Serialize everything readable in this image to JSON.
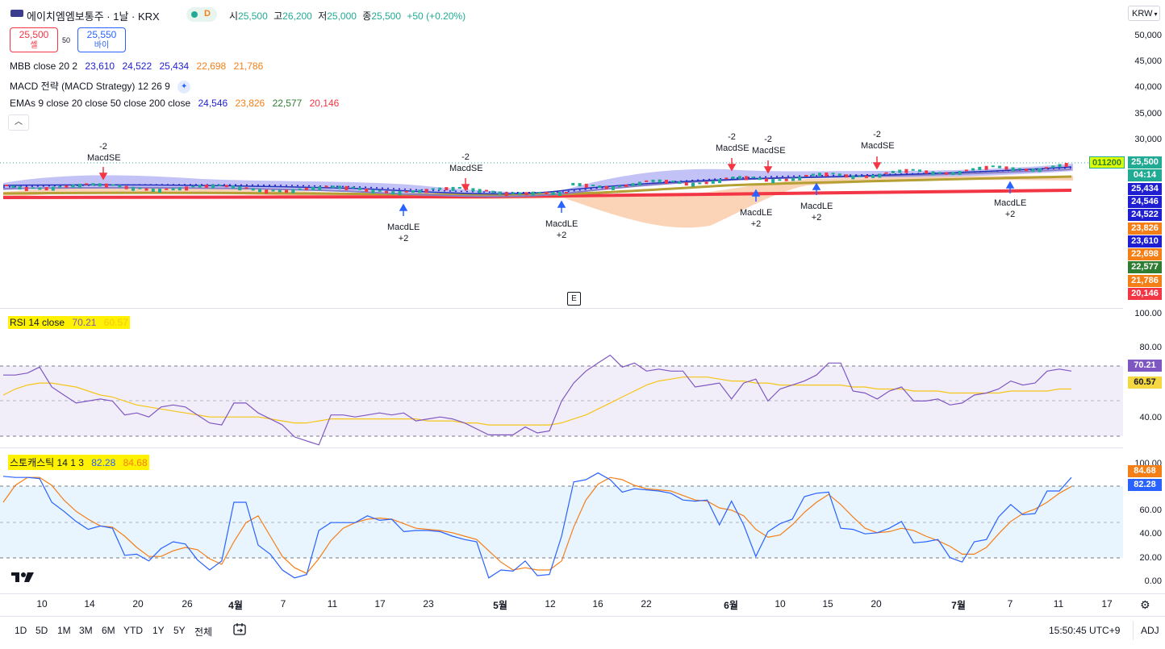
{
  "header": {
    "title": "에이치엠엠보통주 · 1날 · KRX",
    "badge_d": "D",
    "open_label": "시",
    "open": "25,500",
    "high_label": "고",
    "high": "26,200",
    "low_label": "저",
    "low": "25,000",
    "close_label": "종",
    "close": "25,500",
    "change": "+50 (+0.20%)",
    "currency": "KRW"
  },
  "trade": {
    "sell_price": "25,500",
    "sell_label": "셀",
    "spread": "50",
    "buy_price": "25,550",
    "buy_label": "바이"
  },
  "indicators": {
    "mbb_label": "MBB close 20 2",
    "mbb_values": [
      "23,610",
      "24,522",
      "25,434",
      "22,698",
      "21,786"
    ],
    "macd_label": "MACD 전략 (MACD Strategy) 12 26 9",
    "emas_label": "EMAs 9 close 20 close 50 close 200 close",
    "emas_values": [
      "24,546",
      "23,826",
      "22,577",
      "20,146"
    ]
  },
  "price_axis": [
    "50,000",
    "45,000",
    "40,000",
    "35,000",
    "30,000"
  ],
  "price_tags": [
    {
      "text": "25,500",
      "color": "#22ab94"
    },
    {
      "text": "04:14",
      "color": "#22ab94"
    },
    {
      "text": "25,434",
      "color": "#1f1fd1"
    },
    {
      "text": "24,546",
      "color": "#1f1fd1"
    },
    {
      "text": "24,522",
      "color": "#1f1fd1"
    },
    {
      "text": "23,826",
      "color": "#f57f17"
    },
    {
      "text": "23,610",
      "color": "#1f1fd1"
    },
    {
      "text": "22,698",
      "color": "#f57f17"
    },
    {
      "text": "22,577",
      "color": "#2e7d32"
    },
    {
      "text": "21,786",
      "color": "#f57f17"
    },
    {
      "text": "20,146",
      "color": "#f23645"
    }
  ],
  "symbol_tag": "011200",
  "signals": {
    "short": [
      {
        "qty": "-2",
        "label": "MacdSE"
      },
      {
        "qty": "-2",
        "label": "MacdSE"
      },
      {
        "qty": "-2",
        "label": "MacdSE"
      },
      {
        "qty": "-2",
        "label": "MacdSE"
      },
      {
        "qty": "-2",
        "label": "MacdSE"
      }
    ],
    "long": [
      {
        "label": "MacdLE",
        "qty": "+2"
      },
      {
        "label": "MacdLE",
        "qty": "+2"
      },
      {
        "label": "MacdLE",
        "qty": "+2"
      },
      {
        "label": "MacdLE",
        "qty": "+2"
      },
      {
        "label": "MacdLE",
        "qty": "+2"
      }
    ]
  },
  "earnings_badge": "E",
  "rsi": {
    "label": "RSI 14 close",
    "value": "70.21",
    "ma_value": "60.57",
    "axis": [
      "100.00",
      "80.00",
      "40.00"
    ]
  },
  "stoch": {
    "label": "스토캐스틱 14 1 3",
    "k": "82.28",
    "d": "84.68",
    "axis": [
      "100.00",
      "80.00",
      "60.00",
      "40.00",
      "20.00",
      "0.00"
    ]
  },
  "x_axis": [
    "10",
    "14",
    "20",
    "26",
    "4월",
    "7",
    "11",
    "17",
    "23",
    "5월",
    "12",
    "16",
    "22",
    "6월",
    "10",
    "15",
    "20",
    "7월",
    "7",
    "11",
    "17"
  ],
  "timeframes": [
    "1D",
    "5D",
    "1M",
    "3M",
    "6M",
    "YTD",
    "1Y",
    "5Y",
    "전체"
  ],
  "clock": "15:50:45 UTC+9",
  "adj": "ADJ",
  "colors": {
    "accent": "#2962ff",
    "up": "#22ab94",
    "down": "#f23645"
  },
  "chart_data": [
    {
      "type": "line",
      "name": "RSI",
      "ylim": [
        20,
        100
      ],
      "series": [
        {
          "values": [
            68,
            68,
            69,
            72,
            62,
            58,
            54,
            55,
            56,
            55,
            48,
            49,
            47,
            52,
            53,
            52,
            48,
            44,
            43,
            54,
            54,
            49,
            46,
            43,
            37,
            35,
            33,
            48,
            48,
            47,
            48,
            49,
            48,
            49,
            45,
            46,
            47,
            46,
            44,
            41,
            38,
            38,
            38,
            42,
            39,
            40,
            55,
            64,
            70,
            74,
            78,
            72,
            74,
            70,
            71,
            70,
            70,
            62,
            63,
            64,
            56,
            64,
            66,
            55,
            61,
            63,
            65,
            68,
            74,
            74,
            60,
            59,
            56,
            60,
            62,
            55,
            55,
            56,
            53,
            54,
            58,
            59,
            61,
            65,
            63,
            64,
            70,
            71,
            70
          ]
        },
        {
          "values": [
            58,
            61,
            63,
            64,
            64,
            63,
            62,
            60,
            58,
            57,
            55,
            53,
            52,
            51,
            50,
            49,
            48,
            47,
            47,
            47,
            47,
            47,
            46,
            45,
            44,
            44,
            45,
            46,
            46,
            46,
            46,
            46,
            46,
            46,
            46,
            45,
            45,
            45,
            44,
            44,
            43,
            43,
            43,
            43,
            43,
            43,
            44,
            46,
            48,
            51,
            54,
            57,
            60,
            63,
            65,
            66,
            67,
            67,
            67,
            66,
            65,
            65,
            64,
            64,
            63,
            63,
            63,
            63,
            63,
            63,
            62,
            62,
            61,
            61,
            61,
            60,
            60,
            60,
            59,
            59,
            59,
            59,
            59,
            60,
            60,
            60,
            60,
            61,
            61
          ]
        }
      ]
    },
    {
      "type": "line",
      "name": "Stochastic",
      "ylim": [
        0,
        100
      ],
      "series": [
        {
          "values": [
            93,
            92,
            92,
            91,
            70,
            62,
            53,
            46,
            49,
            47,
            23,
            24,
            18,
            29,
            35,
            33,
            19,
            10,
            18,
            70,
            70,
            32,
            24,
            10,
            3,
            6,
            45,
            52,
            52,
            52,
            58,
            54,
            55,
            44,
            45,
            45,
            44,
            40,
            37,
            35,
            3,
            10,
            9,
            18,
            5,
            6,
            40,
            88,
            90,
            96,
            90,
            79,
            82,
            81,
            80,
            78,
            72,
            71,
            72,
            50,
            71,
            50,
            22,
            44,
            51,
            55,
            75,
            78,
            79,
            47,
            46,
            42,
            43,
            47,
            53,
            34,
            35,
            37,
            21,
            17,
            35,
            37,
            57,
            68,
            59,
            60,
            80,
            80,
            92
          ]
        },
        {
          "values": [
            70,
            85,
            92,
            92,
            85,
            72,
            62,
            55,
            49,
            48,
            40,
            30,
            22,
            22,
            27,
            30,
            28,
            20,
            15,
            35,
            52,
            58,
            40,
            22,
            12,
            7,
            20,
            36,
            47,
            52,
            55,
            56,
            55,
            51,
            47,
            46,
            45,
            43,
            40,
            37,
            27,
            17,
            10,
            12,
            10,
            10,
            18,
            48,
            72,
            86,
            92,
            90,
            85,
            82,
            81,
            80,
            76,
            72,
            71,
            65,
            63,
            58,
            46,
            39,
            41,
            50,
            61,
            70,
            77,
            68,
            57,
            47,
            43,
            44,
            47,
            45,
            40,
            36,
            31,
            24,
            24,
            30,
            42,
            53,
            60,
            64,
            70,
            78,
            84
          ]
        }
      ]
    }
  ]
}
